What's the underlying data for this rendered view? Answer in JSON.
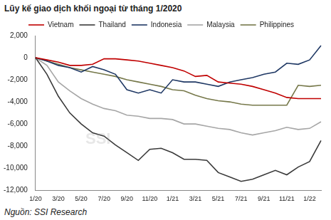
{
  "chart_data": {
    "type": "line",
    "title": "Lũy kế giao dịch khối ngoại từ tháng 1/2020",
    "source": "Nguồn: SSI Research",
    "annotations": [
      "SSI"
    ],
    "categories": [
      "1/20",
      null,
      "3/20",
      null,
      "5/20",
      null,
      "7/20",
      null,
      "9/20",
      null,
      "11/20",
      null,
      "1/21",
      null,
      "3/21",
      null,
      "5/21",
      null,
      "7/21",
      null,
      "9/21",
      null,
      "11/21",
      null,
      "1/22",
      null
    ],
    "series": [
      {
        "name": "Vietnam",
        "color": "#c00000",
        "values": [
          0,
          -200,
          -400,
          -700,
          -700,
          -600,
          -100,
          -100,
          -200,
          -300,
          -500,
          -700,
          -900,
          -1200,
          -1700,
          -1600,
          -2200,
          -2300,
          -2400,
          -2600,
          -2900,
          -3200,
          -3600,
          -3700,
          -3700,
          -3700
        ]
      },
      {
        "name": "Thailand",
        "color": "#3a3a3a",
        "values": [
          0,
          -1500,
          -3500,
          -5000,
          -6000,
          -6800,
          -7100,
          -7900,
          -8600,
          -9300,
          -8300,
          -8200,
          -8600,
          -9200,
          -9200,
          -9300,
          -10400,
          -10800,
          -11200,
          -11000,
          -10600,
          -10200,
          -10600,
          -9900,
          -9400,
          -7500
        ]
      },
      {
        "name": "Indonesia",
        "color": "#1f3864",
        "values": [
          0,
          -300,
          -700,
          -900,
          -1300,
          -800,
          -1100,
          -1500,
          -2900,
          -3200,
          -2900,
          -3200,
          -2000,
          -2200,
          -2200,
          -2400,
          -2600,
          -2200,
          -2000,
          -1800,
          -1500,
          -1300,
          -500,
          -600,
          -200,
          1100
        ]
      },
      {
        "name": "Malaysia",
        "color": "#a6a6a6",
        "values": [
          0,
          -700,
          -2200,
          -3000,
          -3700,
          -4200,
          -4600,
          -4800,
          -5200,
          -5300,
          -5500,
          -5500,
          -5600,
          -6000,
          -6000,
          -6200,
          -6400,
          -6500,
          -6800,
          -7000,
          -6800,
          -6600,
          -6300,
          -6500,
          -6400,
          -5800
        ]
      },
      {
        "name": "Philippines",
        "color": "#76784a",
        "values": [
          0,
          -300,
          -600,
          -900,
          -1100,
          -1300,
          -1500,
          -1700,
          -2000,
          -2200,
          -2400,
          -2600,
          -2900,
          -3000,
          -3400,
          -3700,
          -3900,
          -4000,
          -4200,
          -4300,
          -4300,
          -4300,
          -4300,
          -2500,
          -2600,
          -2500
        ]
      }
    ],
    "ylim": [
      -12000,
      2000
    ],
    "yticks": [
      {
        "value": 2000,
        "label": "2,000"
      },
      0,
      {
        "value": -2000,
        "label": "-2,000"
      },
      {
        "value": -4000,
        "label": "-4,000"
      },
      {
        "value": -6000,
        "label": "-6,000"
      },
      {
        "value": -8000,
        "label": "-8,000"
      },
      {
        "value": -10000,
        "label": "-10,000"
      },
      {
        "value": -12000,
        "label": "-12,000"
      }
    ],
    "grid": false,
    "legend": "top"
  }
}
